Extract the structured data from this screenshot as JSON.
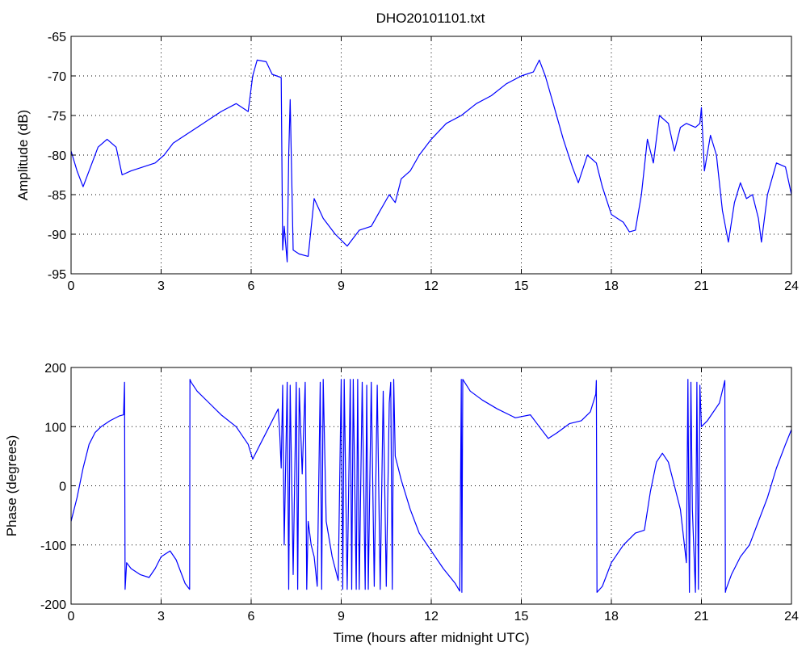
{
  "title": "DHO20101101.txt",
  "line_color": "#0000ff",
  "chart_data": [
    {
      "type": "line",
      "title": "DHO20101101.txt",
      "xlabel": "",
      "ylabel": "Amplitude (dB)",
      "xlim": [
        0,
        24
      ],
      "ylim": [
        -95,
        -65
      ],
      "xticks": [
        0,
        3,
        6,
        9,
        12,
        15,
        18,
        21,
        24
      ],
      "yticks": [
        -95,
        -90,
        -85,
        -80,
        -75,
        -70,
        -65
      ],
      "grid": true,
      "x": [
        0,
        0.2,
        0.4,
        0.6,
        0.9,
        1.2,
        1.5,
        1.7,
        2.0,
        2.4,
        2.8,
        3.1,
        3.4,
        3.8,
        4.2,
        4.6,
        5.0,
        5.5,
        5.9,
        6.05,
        6.2,
        6.5,
        6.7,
        7.0,
        7.05,
        7.1,
        7.2,
        7.25,
        7.3,
        7.4,
        7.6,
        7.9,
        8.1,
        8.4,
        8.8,
        9.2,
        9.6,
        10.0,
        10.3,
        10.6,
        10.8,
        11.0,
        11.3,
        11.6,
        12.0,
        12.5,
        13.0,
        13.5,
        14.0,
        14.5,
        15.0,
        15.4,
        15.6,
        15.8,
        16.1,
        16.4,
        16.7,
        16.9,
        17.2,
        17.5,
        17.7,
        18.0,
        18.4,
        18.6,
        18.8,
        19.0,
        19.2,
        19.4,
        19.6,
        19.9,
        20.1,
        20.3,
        20.5,
        20.8,
        20.95,
        21.0,
        21.1,
        21.3,
        21.5,
        21.7,
        21.9,
        22.1,
        22.3,
        22.5,
        22.7,
        22.9,
        23.0,
        23.2,
        23.5,
        23.8,
        24.0
      ],
      "values": [
        -79.5,
        -82,
        -84,
        -82,
        -79,
        -78,
        -79,
        -82.5,
        -82,
        -81.5,
        -81,
        -80,
        -78.5,
        -77.5,
        -76.5,
        -75.5,
        -74.5,
        -73.5,
        -74.5,
        -70,
        -68,
        -68.2,
        -69.8,
        -70.2,
        -92,
        -89,
        -93.5,
        -80,
        -73,
        -92,
        -92.5,
        -92.8,
        -85.5,
        -88,
        -90,
        -91.5,
        -89.5,
        -89,
        -87,
        -85,
        -86,
        -83,
        -82,
        -80,
        -78,
        -76,
        -75,
        -73.5,
        -72.5,
        -71,
        -70,
        -69.5,
        -68,
        -70,
        -74,
        -78,
        -81.5,
        -83.5,
        -80,
        -81,
        -84,
        -87.5,
        -88.5,
        -89.7,
        -89.5,
        -85,
        -78,
        -81,
        -75,
        -76,
        -79.5,
        -76.5,
        -76,
        -76.5,
        -76,
        -74,
        -82,
        -77.5,
        -80,
        -87,
        -91,
        -86,
        -83.5,
        -85.5,
        -85,
        -88,
        -91,
        -85,
        -81,
        -81.5,
        -85
      ]
    },
    {
      "type": "line",
      "title": "",
      "xlabel": "Time (hours after midnight UTC)",
      "ylabel": "Phase (degrees)",
      "xlim": [
        0,
        24
      ],
      "ylim": [
        -200,
        200
      ],
      "xticks": [
        0,
        3,
        6,
        9,
        12,
        15,
        18,
        21,
        24
      ],
      "yticks": [
        -200,
        -100,
        0,
        100,
        200
      ],
      "grid": true,
      "x": [
        0,
        0.2,
        0.4,
        0.6,
        0.8,
        1.0,
        1.3,
        1.6,
        1.75,
        1.78,
        1.8,
        1.85,
        2.0,
        2.3,
        2.6,
        2.8,
        3.0,
        3.3,
        3.5,
        3.8,
        3.95,
        3.96,
        4.0,
        4.2,
        4.6,
        5.0,
        5.5,
        5.9,
        6.05,
        6.3,
        6.6,
        6.9,
        6.95,
        7.0,
        7.05,
        7.1,
        7.2,
        7.25,
        7.3,
        7.4,
        7.5,
        7.55,
        7.6,
        7.7,
        7.8,
        7.85,
        7.9,
        8.0,
        8.1,
        8.2,
        8.3,
        8.35,
        8.4,
        8.5,
        8.7,
        8.9,
        9.0,
        9.05,
        9.1,
        9.2,
        9.3,
        9.35,
        9.4,
        9.5,
        9.55,
        9.6,
        9.7,
        9.8,
        9.85,
        9.9,
        10.0,
        10.1,
        10.2,
        10.3,
        10.4,
        10.5,
        10.6,
        10.65,
        10.7,
        10.75,
        10.8,
        11.0,
        11.3,
        11.6,
        12.0,
        12.4,
        12.8,
        12.95,
        13.0,
        13.02,
        13.05,
        13.3,
        13.7,
        14.2,
        14.8,
        15.3,
        15.6,
        15.9,
        16.2,
        16.6,
        17.0,
        17.3,
        17.48,
        17.5,
        17.52,
        17.7,
        18.0,
        18.4,
        18.8,
        19.1,
        19.3,
        19.5,
        19.7,
        19.9,
        20.1,
        20.3,
        20.5,
        20.55,
        20.6,
        20.65,
        20.7,
        20.8,
        20.85,
        20.9,
        20.95,
        21.0,
        21.2,
        21.4,
        21.6,
        21.78,
        21.8,
        21.82,
        22.0,
        22.3,
        22.6,
        22.9,
        23.2,
        23.5,
        23.8,
        24.0
      ],
      "values": [
        -60,
        -20,
        30,
        70,
        90,
        100,
        110,
        118,
        120,
        175,
        -175,
        -130,
        -140,
        -150,
        -155,
        -140,
        -120,
        -110,
        -125,
        -165,
        -175,
        180,
        175,
        160,
        140,
        120,
        100,
        70,
        45,
        70,
        100,
        130,
        90,
        30,
        170,
        -100,
        175,
        -175,
        170,
        -150,
        175,
        -175,
        165,
        20,
        175,
        -175,
        -60,
        -100,
        -120,
        -170,
        175,
        -175,
        180,
        -60,
        -120,
        -160,
        180,
        -175,
        180,
        -175,
        180,
        -175,
        180,
        -175,
        180,
        -175,
        175,
        -175,
        170,
        -175,
        175,
        -170,
        170,
        -175,
        160,
        -170,
        140,
        175,
        -175,
        180,
        50,
        10,
        -40,
        -80,
        -110,
        -140,
        -165,
        -178,
        180,
        -180,
        180,
        160,
        145,
        130,
        115,
        120,
        100,
        80,
        90,
        105,
        110,
        125,
        155,
        178,
        -180,
        -170,
        -130,
        -100,
        -80,
        -75,
        -10,
        40,
        55,
        40,
        0,
        -40,
        -130,
        180,
        -180,
        175,
        -40,
        -180,
        175,
        -175,
        170,
        100,
        110,
        125,
        140,
        178,
        -180,
        -175,
        -150,
        -120,
        -100,
        -60,
        -20,
        30,
        70,
        95
      ]
    }
  ]
}
